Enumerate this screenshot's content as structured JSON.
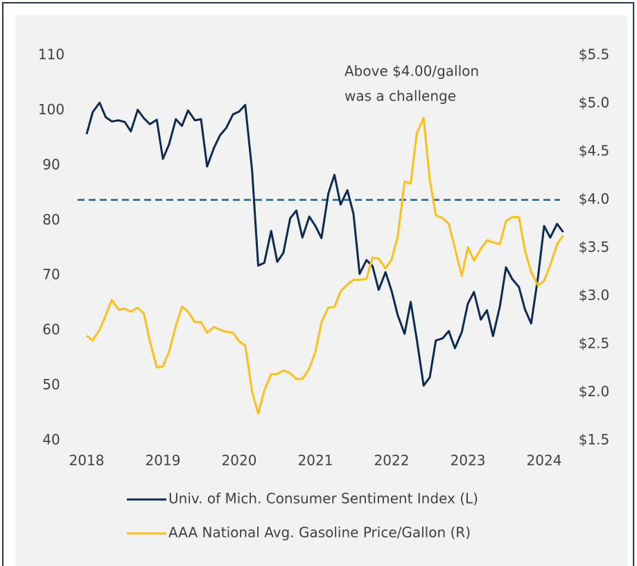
{
  "chart_data": {
    "type": "line",
    "x": [
      2018.0,
      2018.08,
      2018.17,
      2018.25,
      2018.33,
      2018.42,
      2018.5,
      2018.58,
      2018.67,
      2018.75,
      2018.83,
      2018.92,
      2019.0,
      2019.08,
      2019.17,
      2019.25,
      2019.33,
      2019.42,
      2019.5,
      2019.58,
      2019.67,
      2019.75,
      2019.83,
      2019.92,
      2020.0,
      2020.08,
      2020.17,
      2020.25,
      2020.33,
      2020.42,
      2020.5,
      2020.58,
      2020.67,
      2020.75,
      2020.83,
      2020.92,
      2021.0,
      2021.08,
      2021.17,
      2021.25,
      2021.33,
      2021.42,
      2021.5,
      2021.58,
      2021.67,
      2021.75,
      2021.83,
      2021.92,
      2022.0,
      2022.08,
      2022.17,
      2022.25,
      2022.33,
      2022.42,
      2022.5,
      2022.58,
      2022.67,
      2022.75,
      2022.83,
      2022.92,
      2023.0,
      2023.08,
      2023.17,
      2023.25,
      2023.33,
      2023.42,
      2023.5,
      2023.58,
      2023.67,
      2023.75,
      2023.83,
      2023.92,
      2024.0,
      2024.08,
      2024.17,
      2024.25
    ],
    "series": [
      {
        "name": "Univ. of Mich. Consumer Sentiment Index (L)",
        "color": "#0d2a52",
        "axis": "y",
        "values": [
          95.7,
          99.7,
          101.4,
          98.8,
          98.0,
          98.2,
          97.9,
          96.2,
          100.1,
          98.6,
          97.5,
          98.3,
          91.2,
          93.8,
          98.4,
          97.2,
          100.0,
          98.2,
          98.4,
          89.8,
          93.2,
          95.5,
          96.8,
          99.3,
          99.8,
          101.0,
          89.1,
          71.8,
          72.3,
          78.1,
          72.5,
          74.1,
          80.4,
          81.8,
          76.9,
          80.7,
          79.0,
          76.8,
          84.9,
          88.3,
          82.9,
          85.5,
          81.2,
          70.3,
          72.8,
          71.7,
          67.4,
          70.6,
          67.2,
          62.8,
          59.4,
          65.2,
          58.4,
          50.0,
          51.5,
          58.2,
          58.6,
          59.9,
          56.8,
          59.7,
          64.9,
          67.0,
          62.0,
          63.7,
          59.0,
          64.4,
          71.5,
          69.4,
          67.9,
          63.8,
          61.3,
          69.7,
          79.0,
          76.9,
          79.4,
          77.9
        ]
      },
      {
        "name": "AAA National Avg. Gasoline Price/Gallon (R)",
        "color": "#fbbf1a",
        "axis": "y2",
        "values": [
          2.59,
          2.54,
          2.65,
          2.8,
          2.96,
          2.86,
          2.87,
          2.84,
          2.88,
          2.82,
          2.53,
          2.26,
          2.27,
          2.42,
          2.69,
          2.89,
          2.84,
          2.73,
          2.73,
          2.62,
          2.68,
          2.65,
          2.63,
          2.62,
          2.53,
          2.49,
          2.01,
          1.78,
          2.02,
          2.19,
          2.19,
          2.23,
          2.2,
          2.14,
          2.14,
          2.25,
          2.42,
          2.73,
          2.88,
          2.89,
          3.05,
          3.12,
          3.17,
          3.17,
          3.18,
          3.4,
          3.39,
          3.29,
          3.38,
          3.62,
          4.19,
          4.17,
          4.69,
          4.85,
          4.21,
          3.84,
          3.81,
          3.75,
          3.5,
          3.21,
          3.51,
          3.37,
          3.49,
          3.58,
          3.56,
          3.54,
          3.78,
          3.82,
          3.82,
          3.47,
          3.25,
          3.11,
          3.16,
          3.32,
          3.54,
          3.63
        ]
      }
    ],
    "xlim": [
      2017.85,
      2024.45
    ],
    "xticks": [
      2018,
      2019,
      2020,
      2021,
      2022,
      2023,
      2024
    ],
    "ylim": [
      40,
      110
    ],
    "yticks": [
      40,
      50,
      60,
      70,
      80,
      90,
      100,
      110
    ],
    "y2lim": [
      1.5,
      5.5
    ],
    "y2ticks": [
      {
        "value": 1.5,
        "label": "$1.5"
      },
      {
        "value": 2,
        "label": "$2.0"
      },
      {
        "value": 2.5,
        "label": "$2.5"
      },
      {
        "value": 3,
        "label": "$3.0"
      },
      {
        "value": 3.5,
        "label": "$3.5"
      },
      {
        "value": 4,
        "label": "$4.0"
      },
      {
        "value": 4.5,
        "label": "$4.5"
      },
      {
        "value": 5,
        "label": "$5.0"
      },
      {
        "value": 5.5,
        "label": "$5.5"
      }
    ],
    "reference_line": {
      "value": 4,
      "axis": "y2",
      "color": "#2e7bbf"
    },
    "annotation": [
      "Above $4.00/gallon",
      "was a challenge"
    ],
    "legend": "bottom"
  }
}
